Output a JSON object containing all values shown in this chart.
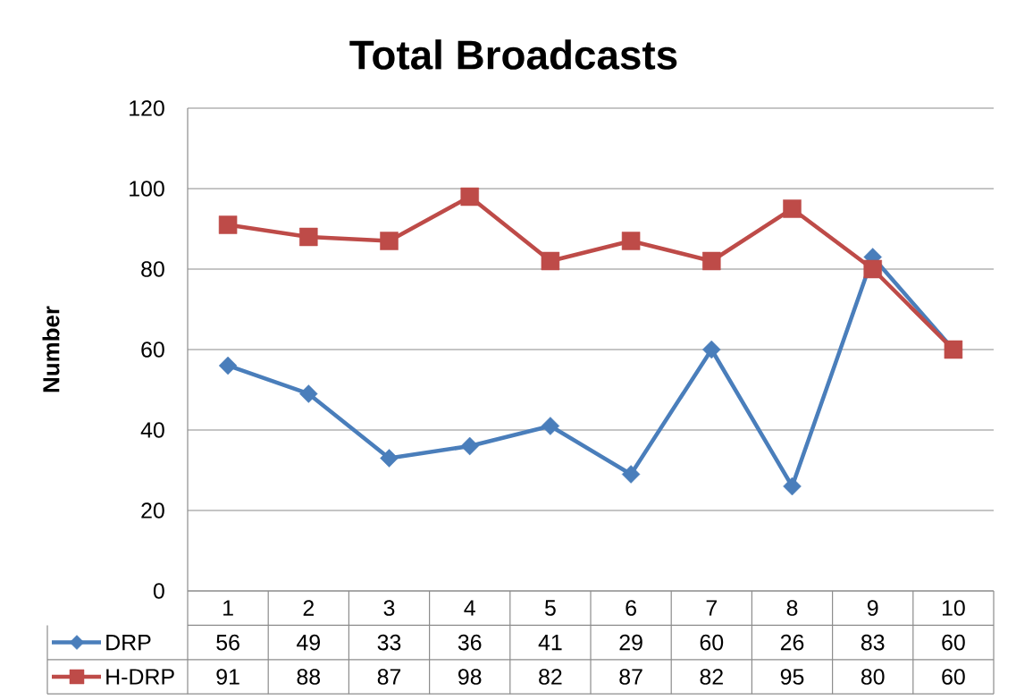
{
  "chart_data": {
    "type": "line",
    "title": "Total Broadcasts",
    "ylabel": "Number",
    "categories": [
      "1",
      "2",
      "3",
      "4",
      "5",
      "6",
      "7",
      "8",
      "9",
      "10"
    ],
    "series": [
      {
        "name": "DRP",
        "color": "#4a7ebb",
        "marker": "diamond",
        "values": [
          56,
          49,
          33,
          36,
          41,
          29,
          60,
          26,
          83,
          60
        ]
      },
      {
        "name": "H-DRP",
        "color": "#be4b48",
        "marker": "square",
        "values": [
          91,
          88,
          87,
          98,
          82,
          87,
          82,
          95,
          80,
          60
        ]
      }
    ],
    "ylim": [
      0,
      120
    ],
    "yticks": [
      0,
      20,
      40,
      60,
      80,
      100,
      120
    ],
    "grid": "y",
    "legend": "bottom",
    "data_labels": true
  }
}
